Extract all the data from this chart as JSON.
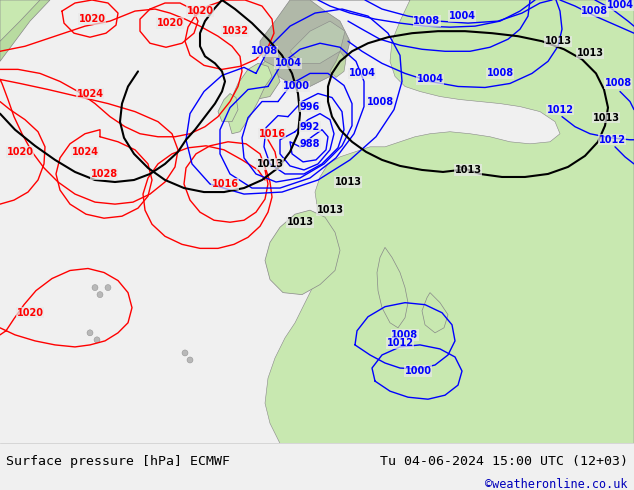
{
  "title_left": "Surface pressure [hPa] ECMWF",
  "title_right": "Tu 04-06-2024 15:00 UTC (12+03)",
  "copyright": "©weatheronline.co.uk",
  "figsize": [
    6.34,
    4.9
  ],
  "dpi": 100,
  "ocean_color": "#e8e8e8",
  "land_color": "#c8e8b0",
  "coast_color": "#888888",
  "footer_bg": "#f0f0f0",
  "footer_text_color": "#000000",
  "copyright_color": "#0000bb",
  "map_border_color": "#aaaaaa"
}
